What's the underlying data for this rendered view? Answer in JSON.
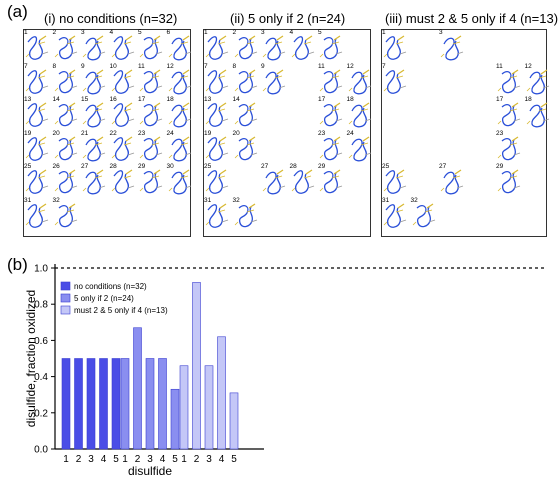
{
  "panel_a": {
    "letter": "(a)",
    "panels": [
      {
        "title": "(i) no conditions (n=32)",
        "cells": [
          1,
          2,
          3,
          4,
          5,
          6,
          7,
          8,
          9,
          10,
          11,
          12,
          13,
          14,
          15,
          16,
          17,
          18,
          19,
          20,
          21,
          22,
          23,
          24,
          25,
          26,
          27,
          28,
          29,
          30,
          31,
          32
        ]
      },
      {
        "title": "(ii) 5 only if 2 (n=24)",
        "cells": [
          1,
          2,
          3,
          4,
          5,
          7,
          8,
          9,
          11,
          12,
          13,
          14,
          17,
          18,
          19,
          20,
          23,
          24,
          25,
          27,
          28,
          29,
          31,
          32
        ]
      },
      {
        "title": "(iii) must 2 & 5 only if 4 (n=13)",
        "cells": [
          1,
          3,
          7,
          11,
          12,
          17,
          18,
          23,
          25,
          27,
          29,
          31,
          32
        ]
      }
    ]
  },
  "panel_b": {
    "letter": "(b)"
  },
  "colors": {
    "series": [
      "#4a4de6",
      "#8a8ef0",
      "#c4c7f7"
    ],
    "structure": "#2a4fd8",
    "structure_ends": "#d8b830"
  },
  "chart_data": {
    "type": "bar",
    "ylabel": "disulfide, fraction oxidized",
    "xlabel": "disulfide",
    "ylim": [
      0.0,
      1.0
    ],
    "yticks": [
      "0.0",
      "0.2",
      "0.4",
      "0.6",
      "0.8",
      "1.0"
    ],
    "categories": [
      "1",
      "2",
      "3",
      "4",
      "5"
    ],
    "reference_line": 1.0,
    "legend_position": "top-left",
    "series": [
      {
        "name": "no conditions (n=32)",
        "values": [
          0.5,
          0.5,
          0.5,
          0.5,
          0.5
        ]
      },
      {
        "name": "5 only if 2 (n=24)",
        "values": [
          0.5,
          0.67,
          0.5,
          0.5,
          0.33
        ]
      },
      {
        "name": "must 2 & 5 only if 4 (n=13)",
        "values": [
          0.46,
          0.92,
          0.46,
          0.62,
          0.31
        ]
      }
    ]
  }
}
